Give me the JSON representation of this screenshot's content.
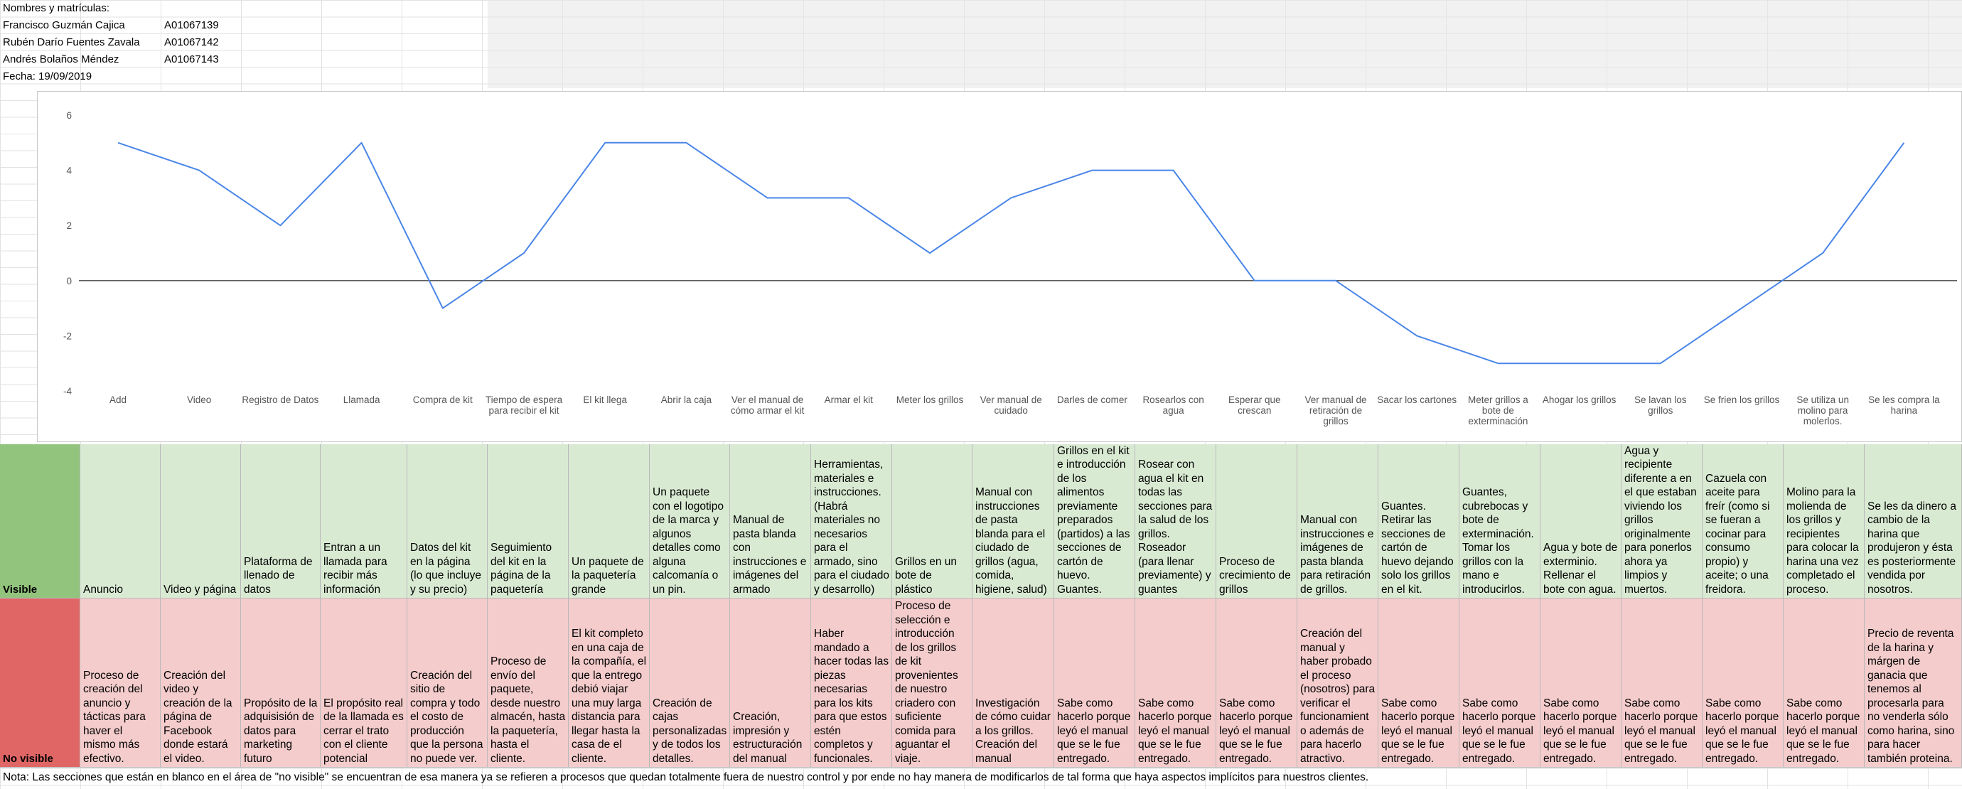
{
  "header": {
    "title": "Nombres y matrículas:",
    "people": [
      {
        "name": "Francisco Guzmán Cajica",
        "id": "A01067139"
      },
      {
        "name": "Rubén Darío Fuentes Zavala",
        "id": "A01067142"
      },
      {
        "name": "Andrés Bolaños Méndez",
        "id": "A01067143"
      }
    ],
    "date": "Fecha: 19/09/2019"
  },
  "chart_data": {
    "type": "line",
    "title": "",
    "xlabel": "",
    "ylabel": "",
    "ylim": [
      -4,
      6
    ],
    "yticks": [
      "6",
      "4",
      "2",
      "0",
      "-2",
      "-4"
    ],
    "grid": false,
    "line_color": "#4a86e8",
    "categories": [
      "Add",
      "Video",
      "Registro de Datos",
      "Llamada",
      "Compra de kit",
      "Tiempo de espera para recibir el kit",
      "El kit llega",
      "Abrir la caja",
      "Ver el manual de cómo armar el kit",
      "Armar el kit",
      "Meter los grillos",
      "Ver manual de cuidado",
      "Darles de comer",
      "Rosearlos con agua",
      "Esperar que crescan",
      "Ver manual de retiración de grillos",
      "Sacar los cartones",
      "Meter grillos a bote de exterminación",
      "Ahogar los grillos",
      "Se lavan los grillos",
      "Se frien los grillos",
      "Se utiliza un molino para molerlos.",
      "Se les compra la harina"
    ],
    "series": [
      {
        "values": [
          5,
          4,
          2,
          5,
          -1,
          1,
          5,
          5,
          3,
          3,
          1,
          3,
          4,
          4,
          0,
          0,
          -2,
          -3,
          -3,
          -3,
          -1,
          1,
          5
        ]
      }
    ]
  },
  "table": {
    "visible_label": "Visible",
    "no_visible_label": "No visible",
    "visible": [
      "Anuncio",
      "Video y página",
      "Plataforma de llenado de datos",
      "Entran a un llamada para recibir más información",
      "Datos del kit en la página (lo que incluye y su precio)",
      "Seguimiento del kit en la página de la paquetería",
      "Un paquete de la paquetería grande",
      "Un paquete con el logotipo de la marca y algunos detalles como alguna calcomanía o un pin.",
      "Manual de pasta blanda con instrucciones e imágenes del armado",
      "Herramientas, materiales e instrucciones. (Habrá materiales no necesarios para el armado, sino para el ciudado y desarrollo)",
      "Grillos en un bote de plástico",
      "Manual con instrucciones de pasta blanda para el ciudado de grillos (agua, comida, higiene, salud)",
      "Grillos en el kit e introducción de los alimentos previamente preparados (partidos) a las secciones de cartón de huevo. Guantes.",
      "Rosear con agua el kit en todas las secciones para la salud de los grillos. Roseador (para llenar previamente) y guantes",
      "Proceso de crecimiento de grillos",
      "Manual con instrucciones e imágenes de pasta blanda para retiración de grillos.",
      "Guantes. Retirar las secciones de cartón de huevo dejando solo los grillos en el kit.",
      "Guantes, cubrebocas y bote de exterminación. Tomar los grillos con la mano e introducirlos.",
      "Agua y bote de exterminio. Rellenar el bote con agua.",
      "Agua y recipiente diferente a en el que estaban viviendo los grillos originalmente para ponerlos ahora ya limpios y muertos.",
      "Cazuela con aceite para freír (como si se fueran a cocinar para consumo propio) y aceite; o una freidora.",
      "Molino para la molienda de los grillos y recipientes para colocar la harina una vez completado el proceso.",
      "Se les da dinero a cambio de la harina que produjeron y ésta es posteriormente vendida por nosotros."
    ],
    "no_visible": [
      "Proceso de creación del anuncio y tácticas para haver el mismo más efectivo.",
      "Creación del video y creación de la página de Facebook donde estará el video.",
      "Propósito de la adquisisión de datos para marketing futuro",
      "El propósito real de la llamada es cerrar el trato con el cliente potencial",
      "Creación del sitio de compra y todo el costo de producción que la persona no puede ver.",
      "Proceso de envío del paquete, desde nuestro almacén, hasta la paquetería, hasta el cliente.",
      "El kit completo en una caja de la compañía, el que la entrego debió viajar una muy larga distancia para llegar hasta la casa de el cliente.",
      "Creación de cajas personalizadas y de todos los detalles.",
      "Creación, impresión y estructuración del manual",
      "Haber mandado a hacer todas las piezas necesarias para los kits para que estos estén completos y funcionales.",
      "Proceso de selección e introducción de los grillos de kit provenientes de nuestro criadero con suficiente comida para aguantar el viaje.",
      "Investigación de cómo cuidar a los grillos. Creación del manual",
      "Sabe como hacerlo porque leyó el manual que se le fue entregado.",
      "Sabe como hacerlo porque leyó el manual que se le fue entregado.",
      "Sabe como hacerlo porque leyó el manual que se le fue entregado.",
      "Creación del manual y haber probado el proceso (nosotros) para verificar el funcionamient o además de para hacerlo atractivo.",
      "Sabe como hacerlo porque leyó el manual que se le fue entregado.",
      "Sabe como hacerlo porque leyó el manual que se le fue entregado.",
      "Sabe como hacerlo porque leyó el manual que se le fue entregado.",
      "Sabe como hacerlo porque leyó el manual que se le fue entregado.",
      "Sabe como hacerlo porque leyó el manual que se le fue entregado.",
      "Sabe como hacerlo porque leyó el manual que se le fue entregado.",
      "Precio de reventa de la harina y márgen de ganacia que tenemos al procesarla para no venderla sólo como harina, sino para hacer también proteina."
    ]
  },
  "note": "Nota: Las secciones que están en blanco en el área de \"no visible\" se encuentran de esa manera ya se refieren a procesos que quedan totalmente fuera de nuestro control y por ende no hay manera de modificarlos de tal forma que haya aspectos implícitos para nuestros clientes."
}
